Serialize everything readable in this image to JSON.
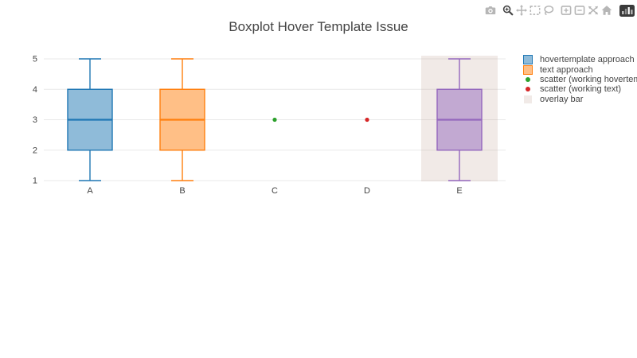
{
  "page": {
    "background": "#ffffff"
  },
  "modebar": {
    "icons": [
      "camera",
      "zoom-search",
      "pan",
      "box-select",
      "lasso-select",
      "zoom-in",
      "zoom-out",
      "autoscale",
      "reset-home",
      "plotly-logo"
    ],
    "active_icon": "zoom-search",
    "active_color": "#444444",
    "inactive_color": "#b6b6b6",
    "logo_color": "#3a3a3a"
  },
  "chart_data": {
    "type": "box",
    "title": "Boxplot Hover Template Issue",
    "categories": [
      "A",
      "B",
      "C",
      "D",
      "E"
    ],
    "y_axis": {
      "ticks": [
        1,
        2,
        3,
        4,
        5
      ],
      "range": [
        0.8,
        5.2
      ]
    },
    "x_axis": {
      "labels": [
        "A",
        "B",
        "C",
        "D",
        "E"
      ]
    },
    "grid": true,
    "grid_color": "#e9e9e9",
    "axis_text_color": "#444444",
    "series": [
      {
        "name": "hovertemplate approach",
        "type": "box",
        "category": "A",
        "min": 1,
        "q1": 2,
        "median": 3,
        "q3": 4,
        "max": 5,
        "line_color": "#1f77b4",
        "fill_color": "rgba(31,119,180,0.5)"
      },
      {
        "name": "text approach",
        "type": "box",
        "category": "B",
        "min": 1,
        "q1": 2,
        "median": 3,
        "q3": 4,
        "max": 5,
        "line_color": "#ff7f0e",
        "fill_color": "rgba(255,127,14,0.5)"
      },
      {
        "name": "scatter (working hovertemplate)",
        "type": "scatter",
        "category": "C",
        "y": 3,
        "color": "#2ca02c"
      },
      {
        "name": "scatter (working text)",
        "type": "scatter",
        "category": "D",
        "y": 3,
        "color": "#d62728"
      },
      {
        "type": "box",
        "category": "E",
        "min": 1,
        "q1": 2,
        "median": 3,
        "q3": 4,
        "max": 5,
        "line_color": "#9467bd",
        "fill_color": "rgba(148,103,189,0.5)"
      },
      {
        "name": "overlay bar",
        "type": "bar",
        "category": "E",
        "y_bottom": 1,
        "y_top": 5,
        "color": "rgba(180,140,120,0.18)"
      }
    ],
    "legend_position": "right",
    "legend": [
      {
        "label": "hovertemplate approach",
        "swatch": "box",
        "fill": "rgba(31,119,180,0.5)",
        "line": "#1f77b4"
      },
      {
        "label": "text approach",
        "swatch": "box",
        "fill": "rgba(255,127,14,0.5)",
        "line": "#ff7f0e"
      },
      {
        "label": "scatter (working hovertemplate)",
        "swatch": "dot",
        "fill": "#2ca02c"
      },
      {
        "label": "scatter (working text)",
        "swatch": "dot",
        "fill": "#d62728"
      },
      {
        "label": "overlay bar",
        "swatch": "bar",
        "fill": "rgba(180,140,120,0.18)"
      }
    ]
  }
}
